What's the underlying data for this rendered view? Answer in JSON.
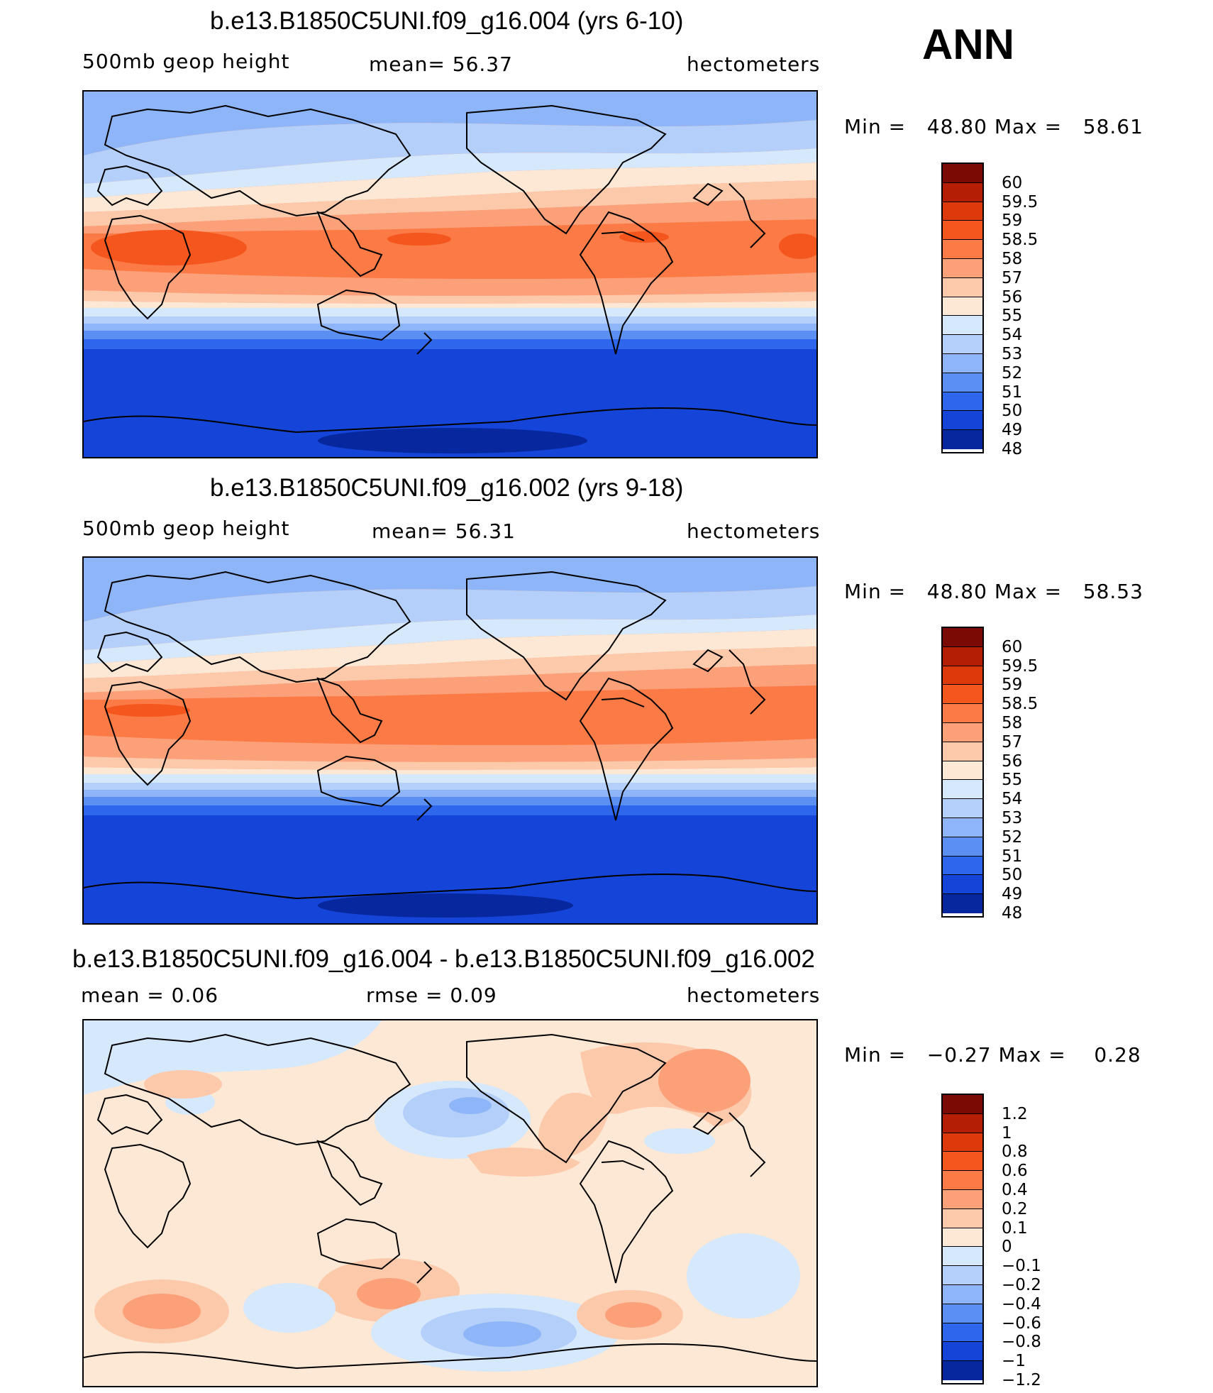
{
  "season": "ANN",
  "panels": [
    {
      "title": "b.e13.B1850C5UNI.f09_g16.004 (yrs 6-10)",
      "field": "500mb geop height",
      "stat": "mean=   56.37",
      "units": "hectometers",
      "min_label": "Min =",
      "min": "48.80",
      "max_label": "Max =",
      "max": "58.61",
      "levels": [
        "60",
        "59.5",
        "59",
        "58.5",
        "58",
        "57",
        "56",
        "55",
        "54",
        "53",
        "52",
        "51",
        "50",
        "49",
        "48"
      ]
    },
    {
      "title": "b.e13.B1850C5UNI.f09_g16.002 (yrs 9-18)",
      "field": "500mb geop height",
      "stat": "mean=   56.31",
      "units": "hectometers",
      "min_label": "Min =",
      "min": "48.80",
      "max_label": "Max =",
      "max": "58.53",
      "levels": [
        "60",
        "59.5",
        "59",
        "58.5",
        "58",
        "57",
        "56",
        "55",
        "54",
        "53",
        "52",
        "51",
        "50",
        "49",
        "48"
      ]
    },
    {
      "title": "b.e13.B1850C5UNI.f09_g16.004 - b.e13.B1850C5UNI.f09_g16.002",
      "field": "mean =    0.06",
      "stat": "rmse =    0.09",
      "units": "hectometers",
      "min_label": "Min =",
      "min": "−0.27",
      "max_label": "Max =",
      "max": "0.28",
      "levels": [
        "1.2",
        "1",
        "0.8",
        "0.6",
        "0.4",
        "0.2",
        "0.1",
        "0",
        "−0.1",
        "−0.2",
        "−0.4",
        "−0.6",
        "−0.8",
        "−1",
        "−1.2"
      ]
    }
  ],
  "palette": [
    "#7a0a03",
    "#b31e05",
    "#dc3a0b",
    "#f4561d",
    "#fb7a45",
    "#fca07a",
    "#fdc9ab",
    "#fde8d5",
    "#d6e8fb",
    "#b4cff9",
    "#8eb5f7",
    "#5b8ff2",
    "#2e67ec",
    "#1545d8",
    "#06279e"
  ],
  "diff_palette": [
    "#7a0a03",
    "#b31e05",
    "#dc3a0b",
    "#f4561d",
    "#fb7a45",
    "#fca07a",
    "#fdc9ab",
    "#fde8d5",
    "#d6e8fb",
    "#b4cff9",
    "#8eb5f7",
    "#5b8ff2",
    "#2e67ec",
    "#1545d8",
    "#06279e"
  ]
}
